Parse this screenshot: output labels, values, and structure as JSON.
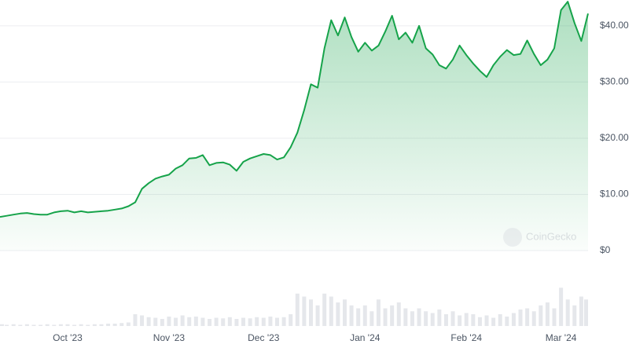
{
  "chart_data": {
    "type": "area",
    "categories": [
      null,
      null,
      null,
      null,
      null,
      null,
      null,
      null,
      null,
      null,
      "Oct '23",
      null,
      null,
      null,
      null,
      null,
      null,
      null,
      null,
      null,
      null,
      null,
      null,
      null,
      null,
      "Nov '23",
      null,
      null,
      null,
      null,
      null,
      null,
      null,
      null,
      null,
      null,
      null,
      null,
      null,
      "Dec '23",
      null,
      null,
      null,
      null,
      null,
      null,
      null,
      null,
      null,
      null,
      null,
      null,
      null,
      null,
      "Jan '24",
      null,
      null,
      null,
      null,
      null,
      null,
      null,
      null,
      null,
      null,
      null,
      null,
      null,
      null,
      "Feb '24",
      null,
      null,
      null,
      null,
      null,
      null,
      null,
      null,
      null,
      null,
      null,
      null,
      null,
      "Mar '24",
      null,
      null,
      null,
      null
    ],
    "series": [
      {
        "name": "Price",
        "color": "#16a34a",
        "values": [
          6.0,
          6.2,
          6.4,
          6.6,
          6.7,
          6.5,
          6.4,
          6.4,
          6.8,
          7.0,
          7.1,
          6.8,
          7.0,
          6.8,
          6.9,
          7.0,
          7.1,
          7.3,
          7.5,
          7.9,
          8.6,
          11.0,
          12.0,
          12.8,
          13.2,
          13.5,
          14.6,
          15.2,
          16.4,
          16.5,
          17.0,
          15.2,
          15.6,
          15.7,
          15.3,
          14.2,
          15.8,
          16.4,
          16.8,
          17.2,
          17.0,
          16.2,
          16.6,
          18.4,
          21.0,
          25.0,
          29.6,
          29.0,
          36.0,
          41.0,
          38.3,
          41.5,
          38.0,
          35.4,
          37.0,
          35.6,
          36.5,
          39.0,
          41.8,
          37.6,
          38.8,
          37.0,
          40.0,
          36.0,
          34.9,
          33.0,
          32.4,
          34.0,
          36.5,
          34.8,
          33.3,
          32.0,
          30.9,
          33.0,
          34.5,
          35.7,
          34.8,
          35.0,
          37.4,
          35.0,
          33.0,
          34.0,
          36.0,
          42.8,
          44.3,
          40.5,
          37.3,
          42.2
        ]
      },
      {
        "name": "Volume",
        "color": "#e5e7eb",
        "values": [
          3,
          2,
          3,
          2,
          3,
          2,
          2,
          3,
          2,
          3,
          3,
          2,
          3,
          2,
          3,
          3,
          4,
          4,
          5,
          6,
          20,
          18,
          15,
          14,
          12,
          16,
          14,
          18,
          15,
          16,
          14,
          12,
          14,
          13,
          15,
          12,
          14,
          13,
          15,
          14,
          16,
          14,
          15,
          20,
          55,
          50,
          45,
          35,
          55,
          50,
          40,
          45,
          35,
          30,
          35,
          25,
          45,
          30,
          35,
          40,
          30,
          25,
          30,
          25,
          22,
          28,
          20,
          25,
          18,
          22,
          20,
          15,
          18,
          14,
          20,
          16,
          22,
          28,
          30,
          25,
          35,
          40,
          30,
          65,
          45,
          35,
          50,
          45
        ]
      }
    ],
    "ylim": [
      0,
      44.6
    ],
    "yticks": [
      {
        "value": 0,
        "label": "$0"
      },
      {
        "value": 10,
        "label": "$10.00"
      },
      {
        "value": 20,
        "label": "$20.00"
      },
      {
        "value": 30,
        "label": "$30.00"
      },
      {
        "value": 40,
        "label": "$40.00"
      }
    ],
    "volume_ylim": [
      0,
      100
    ],
    "grid": true,
    "watermark": "CoinGecko"
  }
}
